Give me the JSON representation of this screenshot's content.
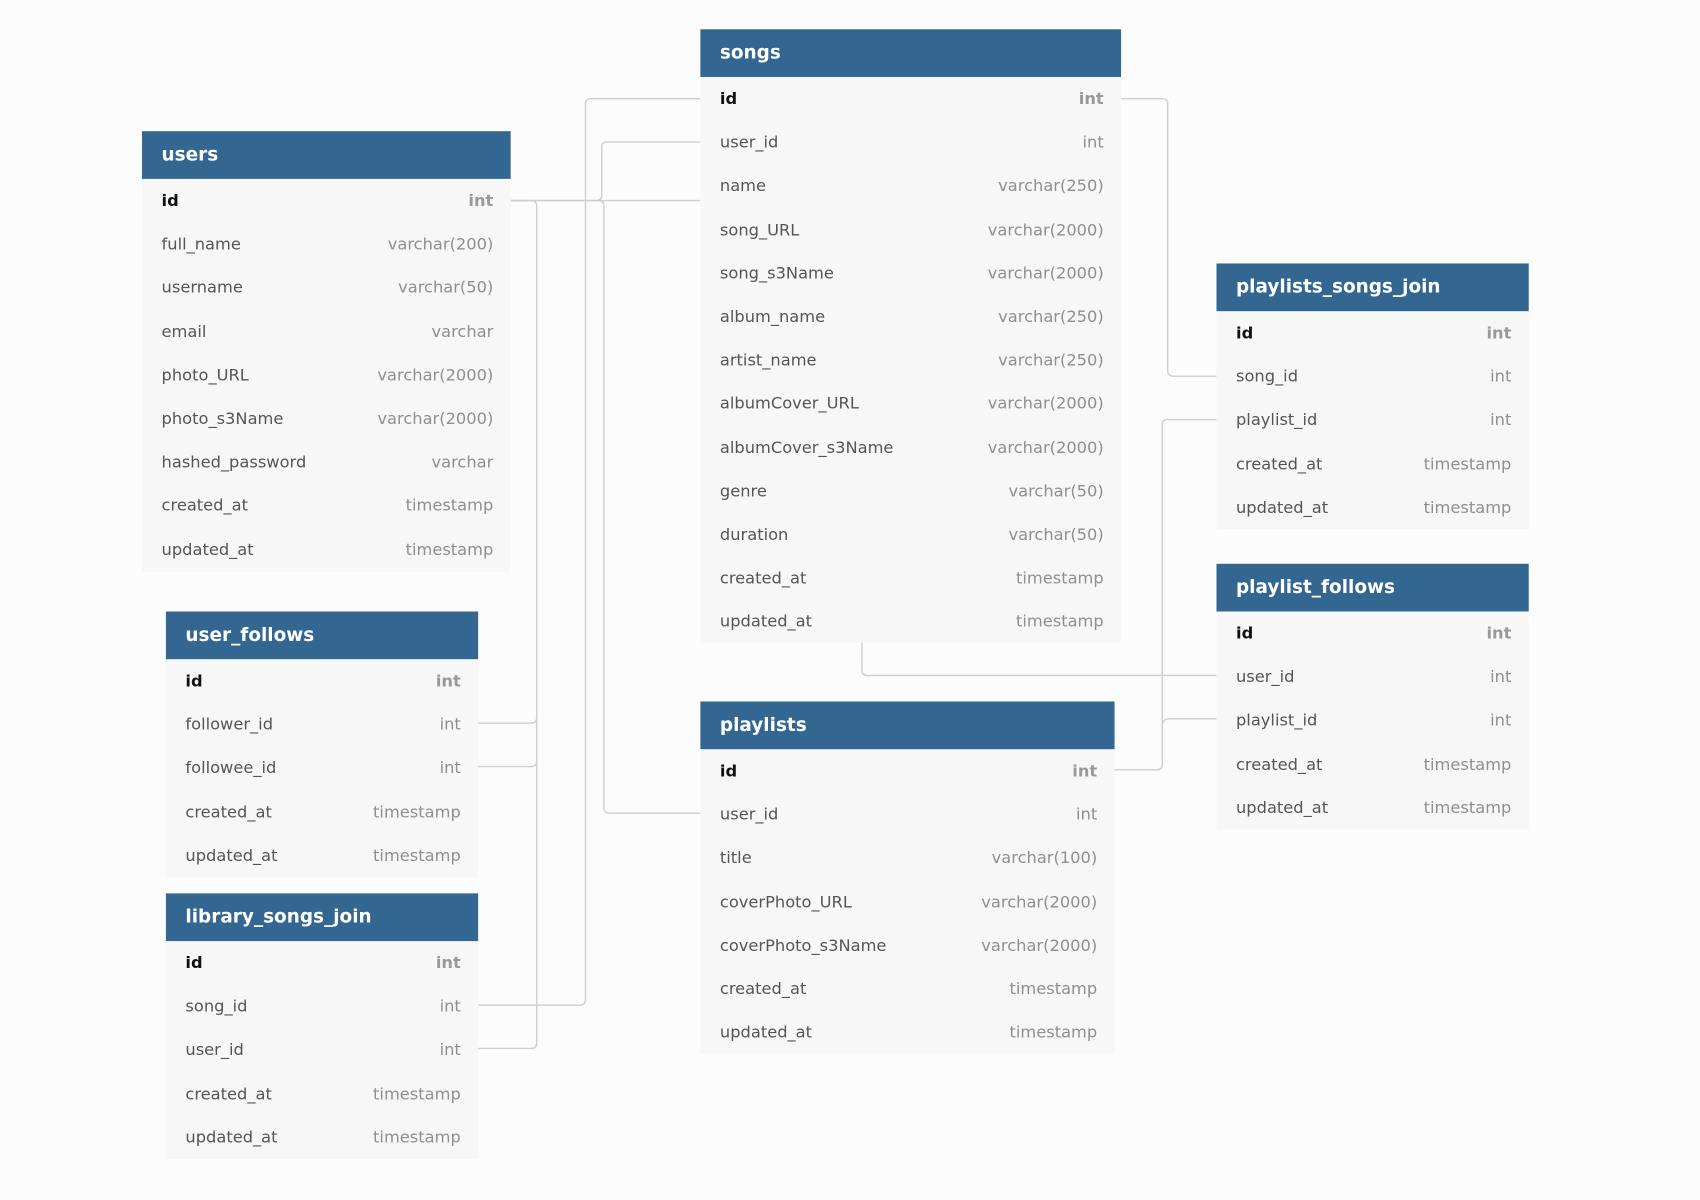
{
  "colors": {
    "header": "#336791",
    "body": "#f7f7f7",
    "link": "#cfcfcf"
  },
  "tables": [
    {
      "name": "users",
      "columns": [
        {
          "name": "id",
          "type": "int",
          "pk": true
        },
        {
          "name": "full_name",
          "type": "varchar(200)"
        },
        {
          "name": "username",
          "type": "varchar(50)"
        },
        {
          "name": "email",
          "type": "varchar"
        },
        {
          "name": "photo_URL",
          "type": "varchar(2000)"
        },
        {
          "name": "photo_s3Name",
          "type": "varchar(2000)"
        },
        {
          "name": "hashed_password",
          "type": "varchar"
        },
        {
          "name": "created_at",
          "type": "timestamp"
        },
        {
          "name": "updated_at",
          "type": "timestamp"
        }
      ]
    },
    {
      "name": "user_follows",
      "columns": [
        {
          "name": "id",
          "type": "int",
          "pk": true
        },
        {
          "name": "follower_id",
          "type": "int"
        },
        {
          "name": "followee_id",
          "type": "int"
        },
        {
          "name": "created_at",
          "type": "timestamp"
        },
        {
          "name": "updated_at",
          "type": "timestamp"
        }
      ]
    },
    {
      "name": "library_songs_join",
      "columns": [
        {
          "name": "id",
          "type": "int",
          "pk": true
        },
        {
          "name": "song_id",
          "type": "int"
        },
        {
          "name": "user_id",
          "type": "int"
        },
        {
          "name": "created_at",
          "type": "timestamp"
        },
        {
          "name": "updated_at",
          "type": "timestamp"
        }
      ]
    },
    {
      "name": "songs",
      "columns": [
        {
          "name": "id",
          "type": "int",
          "pk": true
        },
        {
          "name": "user_id",
          "type": "int"
        },
        {
          "name": "name",
          "type": "varchar(250)"
        },
        {
          "name": "song_URL",
          "type": "varchar(2000)"
        },
        {
          "name": "song_s3Name",
          "type": "varchar(2000)"
        },
        {
          "name": "album_name",
          "type": "varchar(250)"
        },
        {
          "name": "artist_name",
          "type": "varchar(250)"
        },
        {
          "name": "albumCover_URL",
          "type": "varchar(2000)"
        },
        {
          "name": "albumCover_s3Name",
          "type": "varchar(2000)"
        },
        {
          "name": "genre",
          "type": "varchar(50)"
        },
        {
          "name": "duration",
          "type": "varchar(50)"
        },
        {
          "name": "created_at",
          "type": "timestamp"
        },
        {
          "name": "updated_at",
          "type": "timestamp"
        }
      ]
    },
    {
      "name": "playlists",
      "columns": [
        {
          "name": "id",
          "type": "int",
          "pk": true
        },
        {
          "name": "user_id",
          "type": "int"
        },
        {
          "name": "title",
          "type": "varchar(100)"
        },
        {
          "name": "coverPhoto_URL",
          "type": "varchar(2000)"
        },
        {
          "name": "coverPhoto_s3Name",
          "type": "varchar(2000)"
        },
        {
          "name": "created_at",
          "type": "timestamp"
        },
        {
          "name": "updated_at",
          "type": "timestamp"
        }
      ]
    },
    {
      "name": "playlists_songs_join",
      "columns": [
        {
          "name": "id",
          "type": "int",
          "pk": true
        },
        {
          "name": "song_id",
          "type": "int"
        },
        {
          "name": "playlist_id",
          "type": "int"
        },
        {
          "name": "created_at",
          "type": "timestamp"
        },
        {
          "name": "updated_at",
          "type": "timestamp"
        }
      ]
    },
    {
      "name": "playlist_follows",
      "columns": [
        {
          "name": "id",
          "type": "int",
          "pk": true
        },
        {
          "name": "user_id",
          "type": "int"
        },
        {
          "name": "playlist_id",
          "type": "int"
        },
        {
          "name": "created_at",
          "type": "timestamp"
        },
        {
          "name": "updated_at",
          "type": "timestamp"
        }
      ]
    }
  ],
  "relationships": [
    {
      "from": "users.id",
      "to": "songs.user_id"
    },
    {
      "from": "users.id",
      "to": "playlists.user_id"
    },
    {
      "from": "users.id",
      "to": "user_follows.follower_id"
    },
    {
      "from": "users.id",
      "to": "user_follows.followee_id"
    },
    {
      "from": "users.id",
      "to": "library_songs_join.user_id"
    },
    {
      "from": "songs.id",
      "to": "library_songs_join.song_id"
    },
    {
      "from": "songs.id",
      "to": "playlists_songs_join.song_id"
    },
    {
      "from": "playlists.id",
      "to": "playlists_songs_join.playlist_id"
    },
    {
      "from": "playlists.id",
      "to": "playlist_follows.playlist_id"
    },
    {
      "from": "users.id",
      "to": "playlist_follows.user_id"
    }
  ]
}
